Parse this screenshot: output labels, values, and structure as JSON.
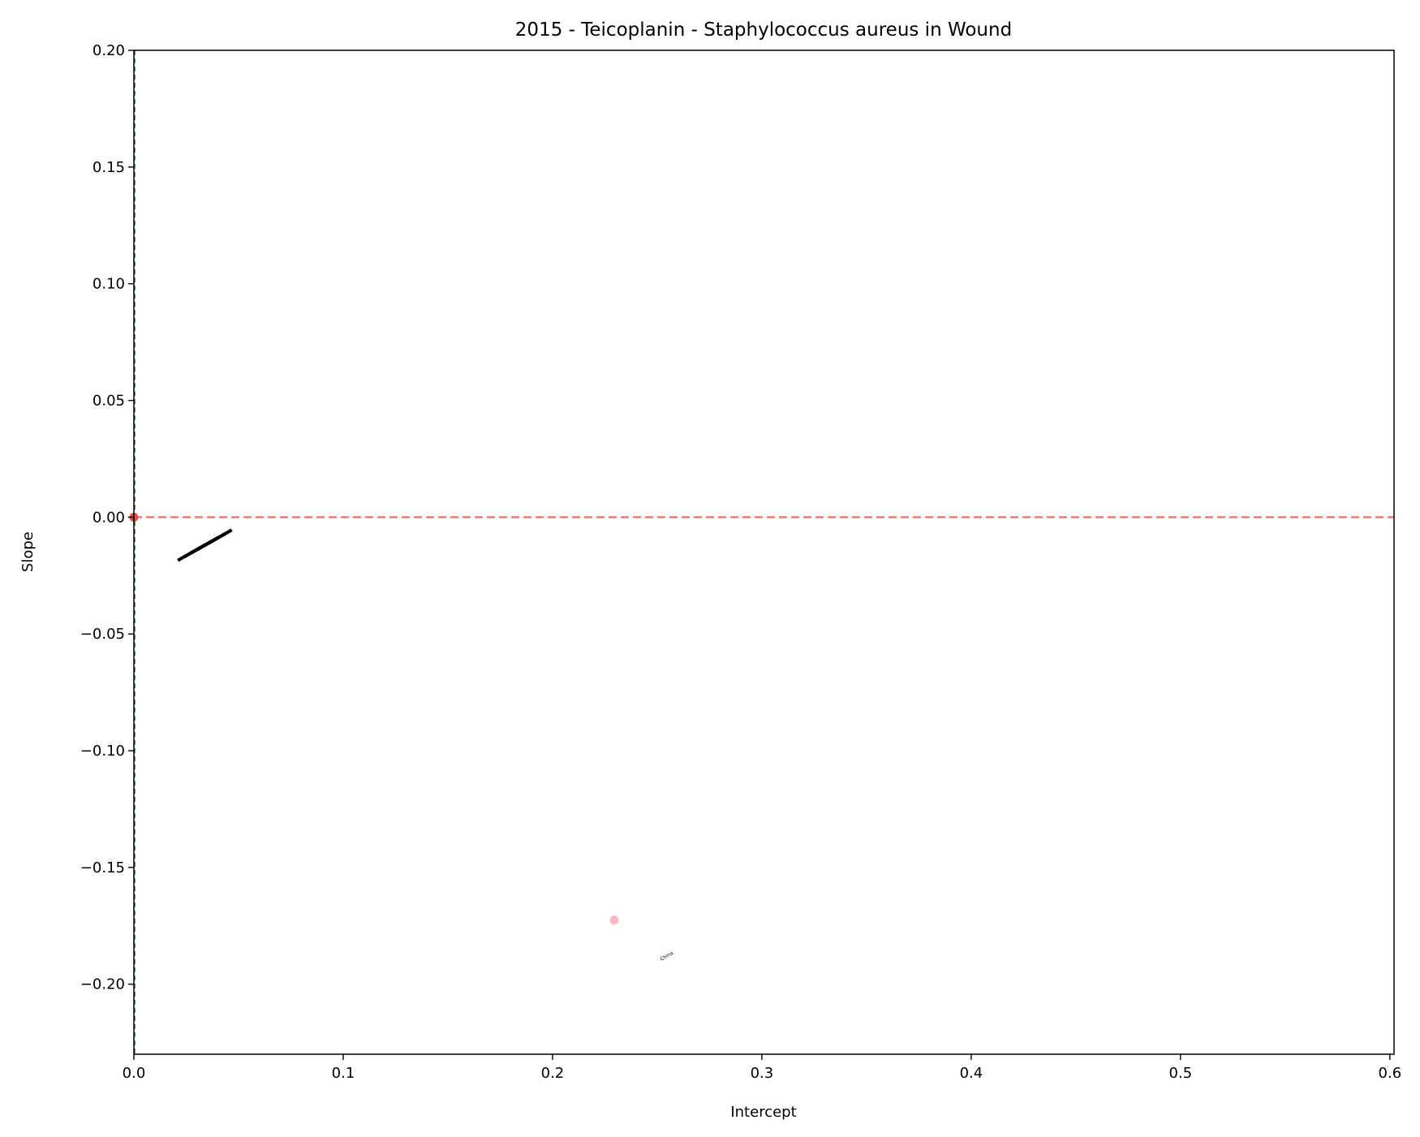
{
  "chart_data": {
    "type": "scatter",
    "title": "2015 - Teicoplanin - Staphylococcus aureus in Wound",
    "xlabel": "Intercept",
    "ylabel": "Slope",
    "xlim": [
      0.0,
      0.602
    ],
    "ylim": [
      -0.23,
      0.2
    ],
    "x_ticks": [
      0.0,
      0.1,
      0.2,
      0.3,
      0.4,
      0.5,
      0.6
    ],
    "y_ticks": [
      0.2,
      0.15,
      0.1,
      0.05,
      0.0,
      -0.05,
      -0.1,
      -0.15,
      -0.2
    ],
    "x_tick_labels": [
      "0.0",
      "0.1",
      "0.2",
      "0.3",
      "0.4",
      "0.5",
      "0.6"
    ],
    "y_tick_labels": [
      "0.20",
      "0.15",
      "0.10",
      "0.05",
      "0.00",
      "−0.05",
      "−0.10",
      "−0.15",
      "−0.20"
    ],
    "reference_lines": [
      {
        "orientation": "horizontal",
        "value": 0.0,
        "color": "#f08080",
        "style": "dashed"
      },
      {
        "orientation": "vertical",
        "value": 0.0,
        "color": "#2e7d32",
        "style": "dashed"
      }
    ],
    "points": [
      {
        "x": 0.0,
        "y": 0.0,
        "color": "#e74c3c",
        "label": ""
      },
      {
        "x": 0.2295,
        "y": -0.1725,
        "color": "#ffb6c1",
        "label": "China"
      }
    ],
    "annotations": [
      {
        "text": "China",
        "x": 0.252,
        "y": -0.19
      },
      {
        "text": "",
        "x": 0.021,
        "y": -0.0185
      },
      {
        "text": "",
        "x": 0.024,
        "y": -0.017
      },
      {
        "text": "",
        "x": 0.027,
        "y": -0.0155
      },
      {
        "text": "",
        "x": 0.03,
        "y": -0.014
      },
      {
        "text": "",
        "x": 0.033,
        "y": -0.0125
      },
      {
        "text": "",
        "x": 0.036,
        "y": -0.011
      }
    ],
    "grid": false
  }
}
